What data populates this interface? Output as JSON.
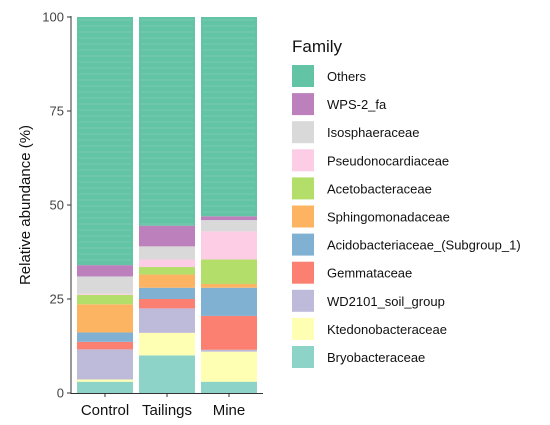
{
  "chart_data": {
    "type": "bar",
    "stacked": true,
    "ylabel": "Relative abundance (%)",
    "ylim": [
      0,
      100
    ],
    "yticks": [
      0,
      25,
      50,
      75,
      100
    ],
    "categories": [
      "Control",
      "Tailings",
      "Mine"
    ],
    "legend_title": "Family",
    "legend_position": "right",
    "series": [
      {
        "name": "Bryobacteraceae",
        "color": "#8DD3C7",
        "values": [
          3,
          10,
          3
        ]
      },
      {
        "name": "Ktedonobacteraceae",
        "color": "#FFFFB3",
        "values": [
          0.6,
          6,
          8
        ]
      },
      {
        "name": "WD2101_soil_group",
        "color": "#BEBADA",
        "values": [
          8,
          6.5,
          0.5
        ]
      },
      {
        "name": "Gemmataceae",
        "color": "#FB8072",
        "values": [
          2,
          2.5,
          9
        ]
      },
      {
        "name": "Acidobacteriaceae_(Subgroup_1)",
        "color": "#80B1D3",
        "values": [
          2.5,
          3,
          7.5
        ]
      },
      {
        "name": "Sphingomonadaceae",
        "color": "#FDB462",
        "values": [
          7.5,
          3.5,
          1
        ]
      },
      {
        "name": "Acetobacteraceae",
        "color": "#B3DE69",
        "values": [
          2.5,
          2,
          6.5
        ]
      },
      {
        "name": "Pseudonocardiaceae",
        "color": "#FCCDE5",
        "values": [
          0.3,
          2,
          7.5
        ]
      },
      {
        "name": "Isosphaeraceae",
        "color": "#D9D9D9",
        "values": [
          4.6,
          3.5,
          3
        ]
      },
      {
        "name": "WPS-2_fa",
        "color": "#BC80BD",
        "values": [
          3,
          5.5,
          1
        ]
      },
      {
        "name": "Others",
        "color": "#62C3A5",
        "values": [
          66,
          55.5,
          53
        ]
      }
    ]
  }
}
